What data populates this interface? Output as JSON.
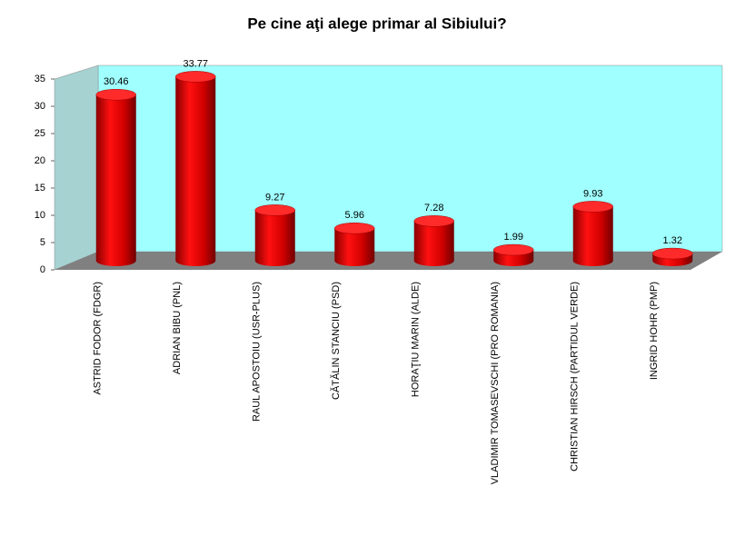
{
  "chart_data": {
    "type": "bar",
    "title": "Pe cine aţi alege primar al Sibiului?",
    "categories": [
      "ASTRID FODOR (FDGR)",
      "ADRIAN BIBU (PNL)",
      "RAUL APOSTOIU (USR-PLUS)",
      "CĂTĂLIN STANCIU (PSD)",
      "HORAŢIU MARIN (ALDE)",
      "VLADIMIR TOMASEVSCHI (PRO ROMANIA)",
      "CHRISTIAN HIRSCH (PARTIDUL VERDE)",
      "INGRID HOHR (PMP)"
    ],
    "values": [
      30.46,
      33.77,
      9.27,
      5.96,
      7.28,
      1.99,
      9.93,
      1.32
    ],
    "color": "#e00000",
    "ylim": [
      0,
      35
    ],
    "yticks": [
      0,
      5,
      10,
      15,
      20,
      25,
      30,
      35
    ]
  }
}
